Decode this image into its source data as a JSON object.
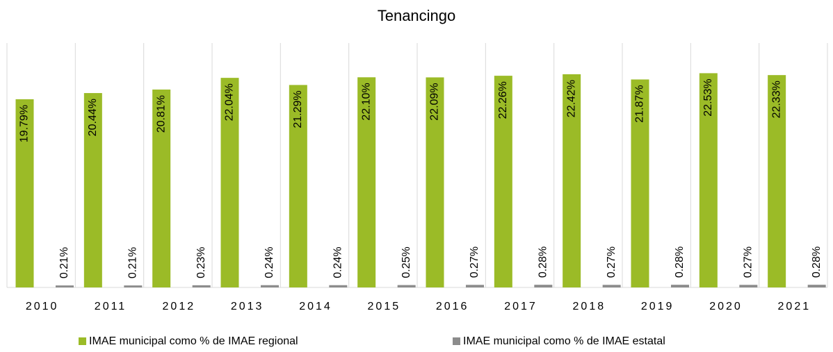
{
  "chart_data": {
    "type": "bar",
    "title": "Tenancingo",
    "categories": [
      "2010",
      "2011",
      "2012",
      "2013",
      "2014",
      "2015",
      "2016",
      "2017",
      "2018",
      "2019",
      "2020",
      "2021"
    ],
    "series": [
      {
        "name": "IMAE municipal como % de IMAE regional",
        "color": "#9bbb27",
        "values": [
          19.79,
          20.44,
          20.81,
          22.04,
          21.29,
          22.1,
          22.09,
          22.26,
          22.42,
          21.87,
          22.53,
          22.33
        ],
        "value_labels": [
          "19.79%",
          "20.44%",
          "20.81%",
          "22.04%",
          "21.29%",
          "22.10%",
          "22.09%",
          "22.26%",
          "22.42%",
          "21.87%",
          "22.53%",
          "22.33%"
        ]
      },
      {
        "name": "IMAE municipal como % de IMAE estatal",
        "color": "#8c8c8c",
        "values": [
          0.21,
          0.21,
          0.23,
          0.24,
          0.24,
          0.25,
          0.27,
          0.28,
          0.27,
          0.28,
          0.27,
          0.28
        ],
        "value_labels": [
          "0.21%",
          "0.21%",
          "0.23%",
          "0.24%",
          "0.24%",
          "0.25%",
          "0.27%",
          "0.28%",
          "0.27%",
          "0.28%",
          "0.27%",
          "0.28%"
        ]
      }
    ],
    "ylim": [
      0,
      25.7
    ]
  }
}
